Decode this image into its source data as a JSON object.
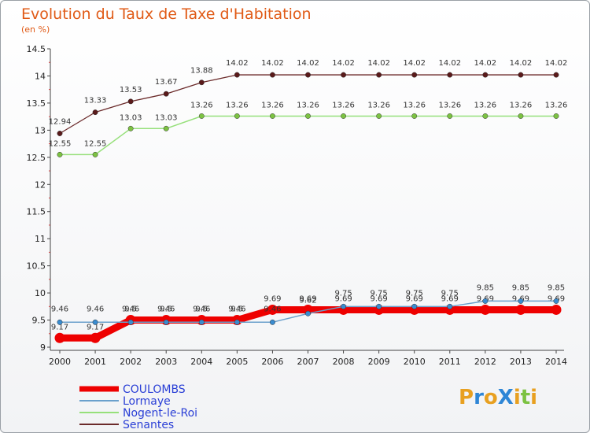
{
  "title": "Evolution du Taux de Taxe d'Habitation",
  "unit_label": "(en %)",
  "logo": {
    "text": "ProXiti",
    "letters": [
      "P",
      "r",
      "o",
      "X",
      "i",
      "t",
      "i"
    ],
    "colors": [
      "#e8a020",
      "#2e86d6",
      "#e8a020",
      "#2e86d6",
      "#e8a020",
      "#7cc242",
      "#e8a020"
    ]
  },
  "chart_data": {
    "type": "line",
    "title": "Evolution du Taux de Taxe d'Habitation",
    "ylabel": "(en %)",
    "xlabel": "",
    "ylim": [
      9,
      14.5
    ],
    "yticks": [
      "9",
      "9.5",
      "10",
      "10.5",
      "11",
      "11.5",
      "12",
      "12.5",
      "13",
      "13.5",
      "14",
      "14.5"
    ],
    "x": [
      "2000",
      "2001",
      "2002",
      "2003",
      "2004",
      "2005",
      "2006",
      "2007",
      "2008",
      "2009",
      "2010",
      "2011",
      "2012",
      "2013",
      "2014"
    ],
    "series": [
      {
        "name": "Senantes",
        "color": "#6b2a2a",
        "dot": "#5a1a1a",
        "width": 1.3,
        "labels": true,
        "values": [
          12.94,
          13.33,
          13.53,
          13.67,
          13.88,
          14.02,
          14.02,
          14.02,
          14.02,
          14.02,
          14.02,
          14.02,
          14.02,
          14.02,
          14.02
        ],
        "display": [
          "12.94",
          "13.33",
          "13.53",
          "13.67",
          "13.88",
          "14.02",
          "14.02",
          "14.02",
          "14.02",
          "14.02",
          "14.02",
          "14.02",
          "14.02",
          "14.02",
          "14.02"
        ]
      },
      {
        "name": "Nogent-le-Roi",
        "color": "#96e07a",
        "dot": "#7cc242",
        "width": 1.5,
        "labels": true,
        "values": [
          12.55,
          12.55,
          13.03,
          13.03,
          13.26,
          13.26,
          13.26,
          13.26,
          13.26,
          13.26,
          13.26,
          13.26,
          13.26,
          13.26,
          13.26
        ],
        "display": [
          "12.55",
          "12.55",
          "13.03",
          "13.03",
          "13.26",
          "13.26",
          "13.26",
          "13.26",
          "13.26",
          "13.26",
          "13.26",
          "13.26",
          "13.26",
          "13.26",
          "13.26"
        ]
      },
      {
        "name": "COULOMBS",
        "color": "#ee0000",
        "dot": "#ee0000",
        "width": 9,
        "labels": true,
        "values": [
          9.17,
          9.17,
          9.5,
          9.5,
          9.5,
          9.5,
          9.69,
          9.69,
          9.69,
          9.69,
          9.69,
          9.69,
          9.69,
          9.69,
          9.69
        ],
        "display": [
          "9.17",
          "9.17",
          "9.5",
          "9.5",
          "9.5",
          "9.5",
          "9.69",
          "9.69",
          "9.69",
          "9.69",
          "9.69",
          "9.69",
          "9.69",
          "9.69",
          "9.69"
        ]
      },
      {
        "name": "Lormaye",
        "color": "#6aa0cc",
        "dot": "#3a8cd0",
        "width": 1.5,
        "labels": true,
        "values": [
          9.46,
          9.46,
          9.46,
          9.46,
          9.46,
          9.46,
          9.46,
          9.62,
          9.75,
          9.75,
          9.75,
          9.75,
          9.85,
          9.85,
          9.85
        ],
        "display": [
          "9.46",
          "9.46",
          "9.46",
          "9.46",
          "9.46",
          "9.46",
          "9.46",
          "9.62",
          "9.75",
          "9.75",
          "9.75",
          "9.75",
          "9.85",
          "9.85",
          "9.85"
        ]
      }
    ],
    "legend": [
      "COULOMBS",
      "Lormaye",
      "Nogent-le-Roi",
      "Senantes"
    ],
    "legend_position": "bottom-left",
    "grid": false
  }
}
